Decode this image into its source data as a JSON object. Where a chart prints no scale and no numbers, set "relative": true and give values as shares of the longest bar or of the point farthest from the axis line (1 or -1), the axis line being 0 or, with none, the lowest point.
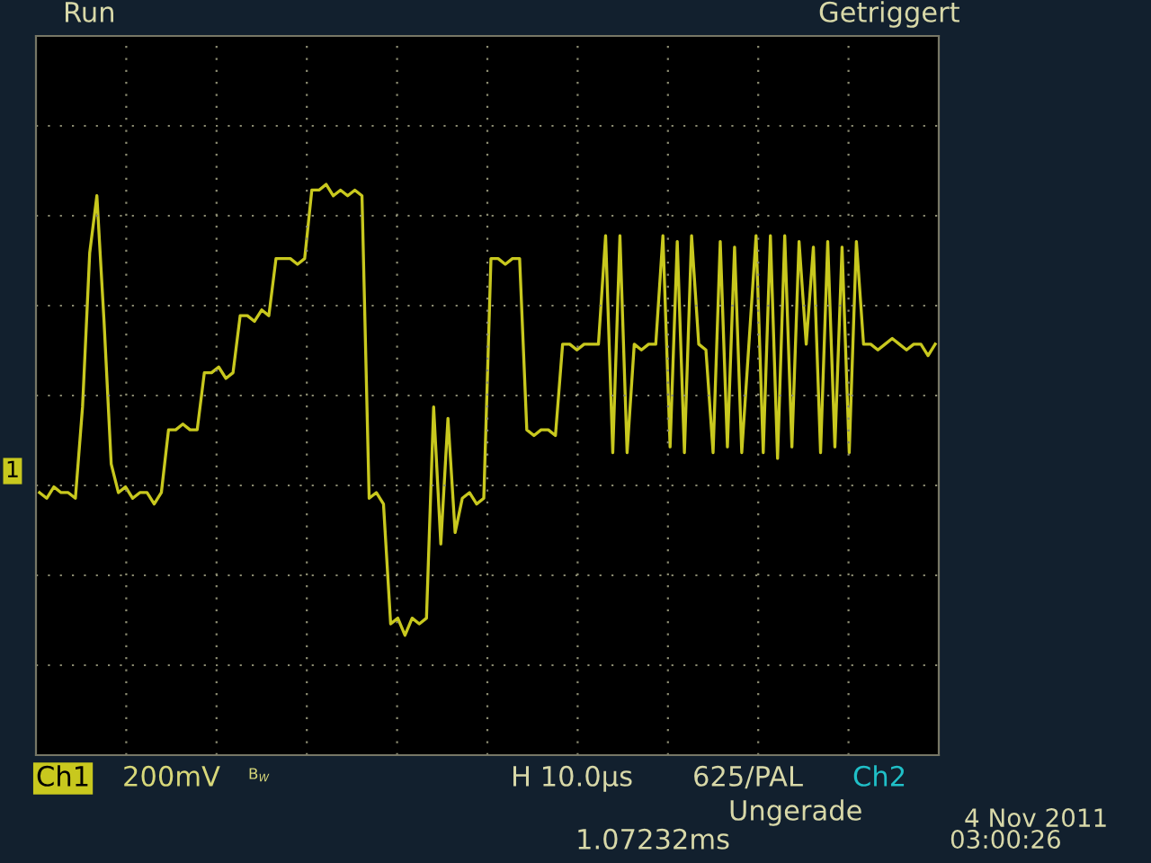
{
  "chart_data": {
    "type": "line",
    "relative": true,
    "grid": true,
    "categories": [
      null,
      null,
      null,
      null,
      null,
      null,
      null,
      null,
      null,
      null,
      null,
      null,
      null,
      null,
      null,
      null,
      null,
      null,
      null,
      null,
      null,
      null,
      null,
      null,
      null,
      null,
      null,
      null,
      null,
      null,
      null,
      null,
      null,
      null,
      null,
      null,
      null,
      null,
      null,
      null,
      null,
      null,
      null,
      null,
      null,
      null,
      null,
      null,
      null,
      null,
      null,
      null,
      null,
      null,
      null,
      null,
      null,
      null,
      null,
      null,
      null,
      null,
      null,
      null,
      null,
      null,
      null,
      null,
      null,
      null,
      null,
      null,
      null,
      null,
      null,
      null,
      null,
      null,
      null,
      null,
      null,
      null,
      null,
      null,
      null,
      null,
      null,
      null,
      null,
      null,
      null,
      null,
      null,
      null,
      null,
      null,
      null,
      null,
      null,
      null,
      null,
      null,
      null,
      null,
      null,
      null,
      null,
      null,
      null,
      null,
      null,
      null,
      null,
      null,
      null,
      null,
      null,
      null,
      null,
      null,
      null,
      null,
      null,
      null,
      null,
      null
    ],
    "series": [
      {
        "color": "#c8c81e",
        "values": [
          0.46,
          0.45,
          0.47,
          0.46,
          0.46,
          0.45,
          0.61,
          0.88,
          0.98,
          0.76,
          0.51,
          0.46,
          0.47,
          0.45,
          0.46,
          0.46,
          0.44,
          0.46,
          0.57,
          0.57,
          0.58,
          0.57,
          0.57,
          0.67,
          0.67,
          0.68,
          0.66,
          0.67,
          0.77,
          0.77,
          0.76,
          0.78,
          0.77,
          0.87,
          0.87,
          0.87,
          0.86,
          0.87,
          0.99,
          0.99,
          1.0,
          0.98,
          0.99,
          0.98,
          0.99,
          0.98,
          0.45,
          0.46,
          0.44,
          0.23,
          0.24,
          0.21,
          0.24,
          0.23,
          0.24,
          0.61,
          0.37,
          0.59,
          0.39,
          0.45,
          0.46,
          0.44,
          0.45,
          0.87,
          0.87,
          0.86,
          0.87,
          0.87,
          0.57,
          0.56,
          0.57,
          0.57,
          0.56,
          0.72,
          0.72,
          0.71,
          0.72,
          0.72,
          0.72,
          0.91,
          0.53,
          0.91,
          0.53,
          0.72,
          0.71,
          0.72,
          0.72,
          0.91,
          0.54,
          0.9,
          0.53,
          0.91,
          0.72,
          0.71,
          0.53,
          0.9,
          0.54,
          0.89,
          0.53,
          0.72,
          0.91,
          0.53,
          0.91,
          0.52,
          0.91,
          0.54,
          0.9,
          0.72,
          0.89,
          0.53,
          0.9,
          0.54,
          0.89,
          0.53,
          0.9,
          0.72,
          0.72,
          0.71,
          0.72,
          0.73,
          0.72,
          0.71,
          0.72,
          0.72,
          0.7,
          0.72
        ]
      }
    ],
    "annotations": [
      "Run",
      "Getriggert",
      "Ch1",
      "200mV",
      "B$_{W}$",
      "H 10.0µs",
      "625/PAL",
      "Ch2",
      "Ungerade",
      "4 Nov 2011",
      "03:00:26",
      "1.07232ms",
      "1"
    ]
  }
}
